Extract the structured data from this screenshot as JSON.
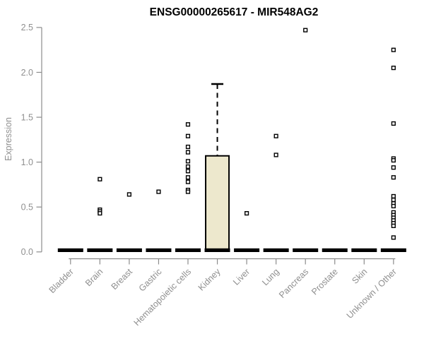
{
  "title": "ENSG00000265617 - MIR548AG2",
  "chart_data": {
    "type": "boxplot",
    "title": "ENSG00000265617 - MIR548AG2",
    "xlabel": "",
    "ylabel": "Expression",
    "ylim": [
      0,
      2.5
    ],
    "ytick_labels": [
      "0.0",
      "0.5",
      "1.0",
      "1.5",
      "2.0",
      "2.5"
    ],
    "ytick_values": [
      0,
      0.5,
      1,
      1.5,
      2,
      2.5
    ],
    "grid": false,
    "legend": false,
    "marker": "open-square",
    "categories": [
      "Bladder",
      "Brain",
      "Breast",
      "Gastric",
      "Hematopoietic cells",
      "Kidney",
      "Liver",
      "Lung",
      "Pancreas",
      "Prostate",
      "Skin",
      "Unknown / Other"
    ],
    "boxes": [
      {
        "category": "Bladder",
        "median": 0,
        "q1": 0,
        "q3": 0,
        "whisker_low": 0,
        "whisker_high": 0,
        "outliers": []
      },
      {
        "category": "Brain",
        "median": 0,
        "q1": 0,
        "q3": 0,
        "whisker_low": 0,
        "whisker_high": 0,
        "outliers": [
          0.81,
          0.47,
          0.45,
          0.43
        ]
      },
      {
        "category": "Breast",
        "median": 0,
        "q1": 0,
        "q3": 0,
        "whisker_low": 0,
        "whisker_high": 0,
        "outliers": [
          0.64
        ]
      },
      {
        "category": "Gastric",
        "median": 0,
        "q1": 0,
        "q3": 0,
        "whisker_low": 0,
        "whisker_high": 0,
        "outliers": [
          0.67
        ]
      },
      {
        "category": "Hematopoietic cells",
        "median": 0,
        "q1": 0,
        "q3": 0,
        "whisker_low": 0,
        "whisker_high": 0,
        "outliers": [
          1.42,
          1.29,
          1.17,
          1.11,
          1.01,
          0.95,
          0.9,
          0.83,
          0.78,
          0.69,
          0.67
        ]
      },
      {
        "category": "Kidney",
        "median": 0,
        "q1": 0,
        "q3": 1.07,
        "whisker_low": 0,
        "whisker_high": 1.87,
        "outliers": []
      },
      {
        "category": "Liver",
        "median": 0,
        "q1": 0,
        "q3": 0,
        "whisker_low": 0,
        "whisker_high": 0,
        "outliers": [
          0.43
        ]
      },
      {
        "category": "Lung",
        "median": 0,
        "q1": 0,
        "q3": 0,
        "whisker_low": 0,
        "whisker_high": 0,
        "outliers": [
          1.29,
          1.08
        ]
      },
      {
        "category": "Pancreas",
        "median": 0,
        "q1": 0,
        "q3": 0,
        "whisker_low": 0,
        "whisker_high": 0,
        "outliers": [
          2.47
        ]
      },
      {
        "category": "Prostate",
        "median": 0,
        "q1": 0,
        "q3": 0,
        "whisker_low": 0,
        "whisker_high": 0,
        "outliers": []
      },
      {
        "category": "Skin",
        "median": 0,
        "q1": 0,
        "q3": 0,
        "whisker_low": 0,
        "whisker_high": 0,
        "outliers": []
      },
      {
        "category": "Unknown / Other",
        "median": 0,
        "q1": 0,
        "q3": 0,
        "whisker_low": 0,
        "whisker_high": 0,
        "outliers": [
          2.25,
          2.05,
          1.43,
          1.04,
          1.02,
          0.94,
          0.83,
          0.62,
          0.58,
          0.54,
          0.51,
          0.44,
          0.41,
          0.38,
          0.35,
          0.32,
          0.29,
          0.16
        ]
      }
    ],
    "colors": {
      "box_fill": "#EDE8CD",
      "box_border": "#000000",
      "median": "#000000",
      "whisker": "#000000",
      "outlier_fill": "#FFFFFF",
      "outlier_border": "#000000",
      "axis_line": "#8C8C8C",
      "axis_text": "#8F8F8F",
      "title_text": "#000000",
      "background": "#FFFFFF"
    }
  }
}
